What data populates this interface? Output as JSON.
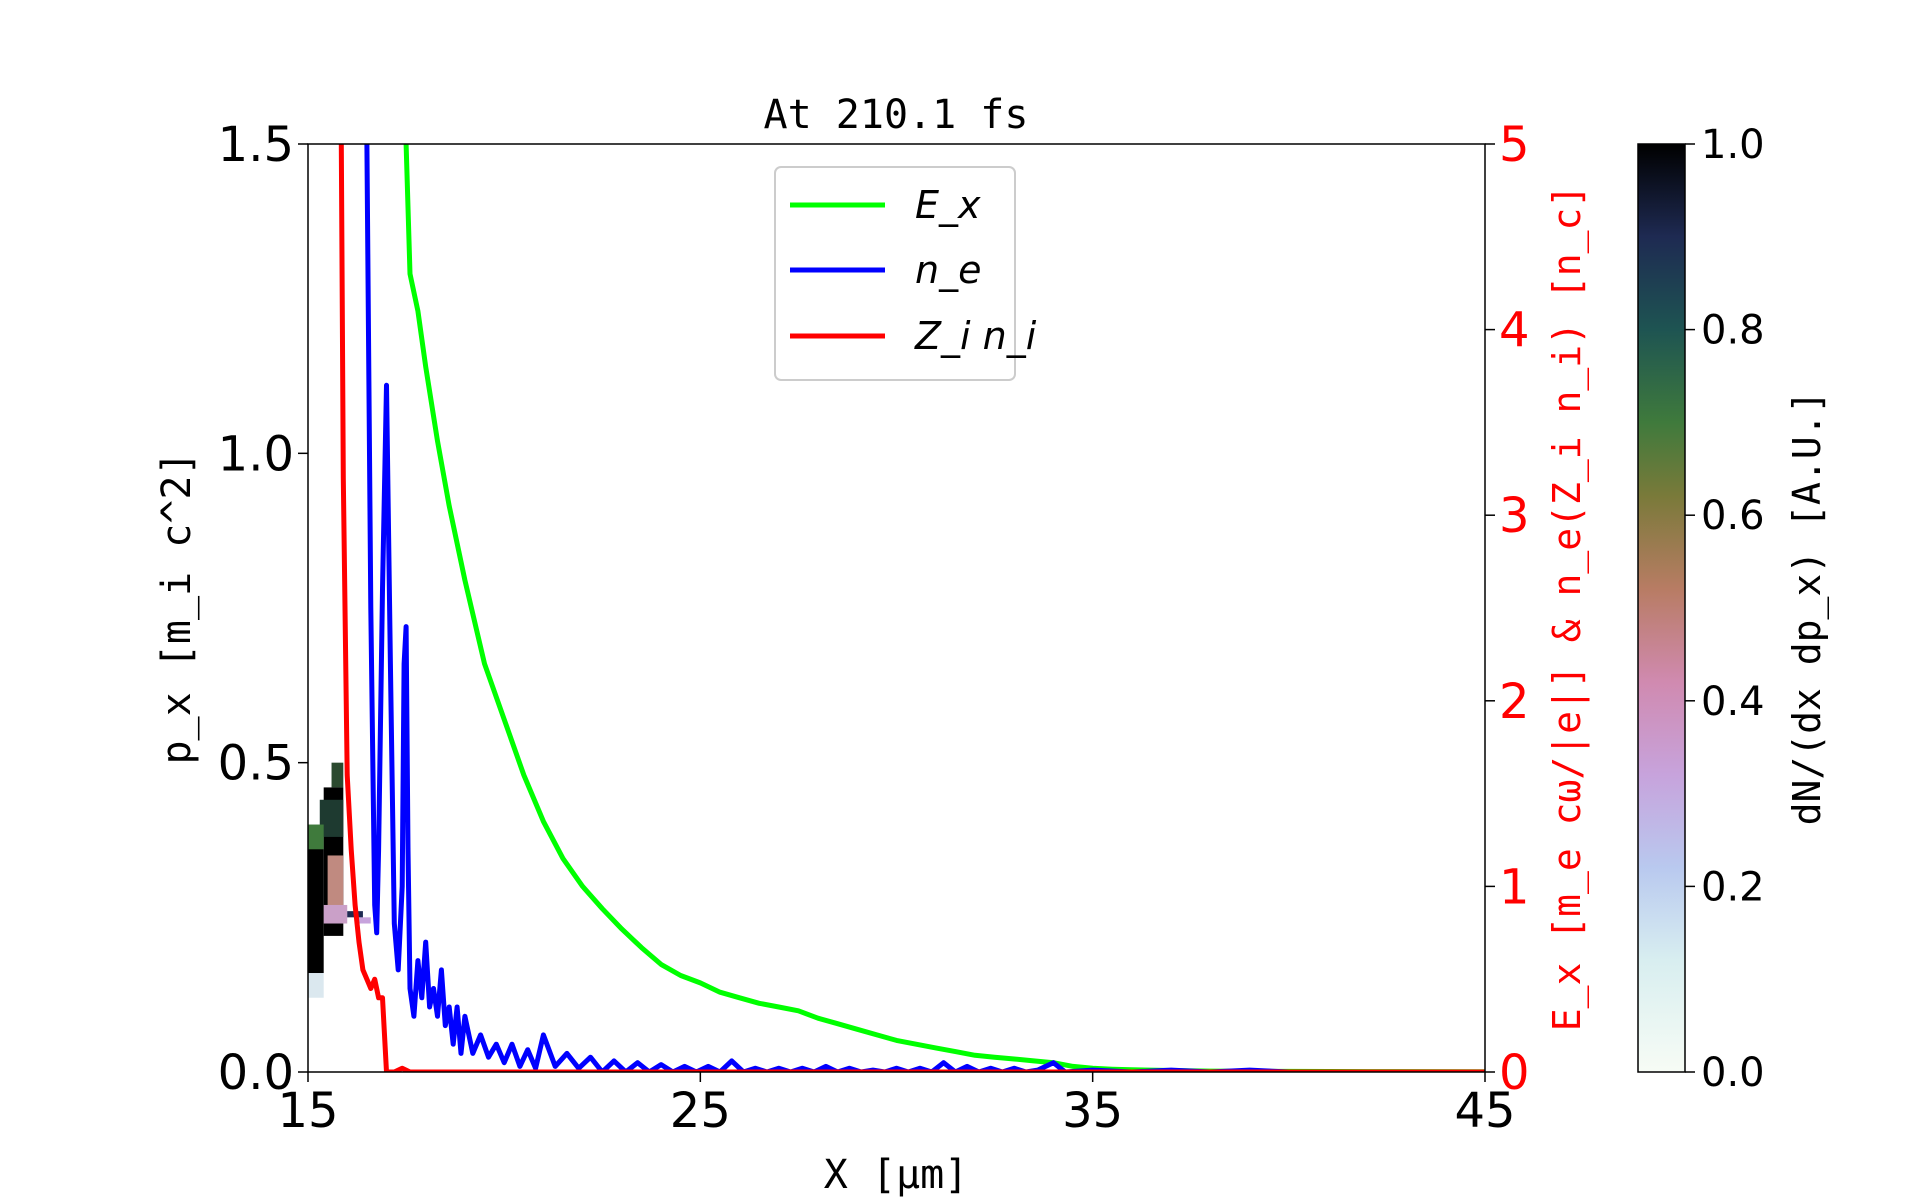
{
  "chart_data": {
    "type": "line",
    "title": "At 210.1 fs",
    "xlabel": "X [μm]",
    "ylabel_left": "p_x [m_i c^2]",
    "ylabel_right": "E_x [m_e cω/|e|] & n_e(Z_i n_i) [n_c]",
    "colorbar_label": "dN/(dx dp_x) [A.U.]",
    "xlim": [
      15,
      45
    ],
    "ylim_left": [
      0,
      1.5
    ],
    "ylim_right": [
      0,
      5
    ],
    "colorbar_range": [
      0,
      1
    ],
    "x_ticks": [
      "15",
      "25",
      "35",
      "45"
    ],
    "y_ticks_left": [
      "0.0",
      "0.5",
      "1.0",
      "1.5"
    ],
    "y_ticks_right": [
      "0",
      "1",
      "2",
      "3",
      "4",
      "5"
    ],
    "colorbar_ticks": [
      "0.0",
      "0.2",
      "0.4",
      "0.6",
      "0.8",
      "1.0"
    ],
    "grid": false,
    "legend_position": "top-center",
    "series": [
      {
        "name": "E_x",
        "color": "#00ff00",
        "axis": "right",
        "x": [
          17.5,
          17.6,
          17.8,
          18.0,
          18.3,
          18.6,
          19.0,
          19.5,
          20.0,
          20.5,
          21.0,
          21.5,
          22.0,
          22.5,
          23.0,
          23.5,
          24.0,
          24.5,
          25.0,
          25.5,
          26.0,
          26.5,
          27.0,
          27.5,
          28.0,
          28.5,
          29.0,
          29.5,
          30.0,
          30.5,
          31.0,
          31.5,
          32.0,
          32.5,
          33.0,
          33.5,
          34.0,
          34.5,
          35.0,
          35.5,
          36.0,
          37.0,
          38.0,
          40.0,
          42.0,
          45.0
        ],
        "y": [
          5.0,
          4.3,
          4.1,
          3.8,
          3.4,
          3.05,
          2.65,
          2.2,
          1.9,
          1.6,
          1.35,
          1.15,
          1.0,
          0.88,
          0.77,
          0.67,
          0.58,
          0.52,
          0.48,
          0.43,
          0.4,
          0.37,
          0.35,
          0.33,
          0.29,
          0.26,
          0.23,
          0.2,
          0.17,
          0.15,
          0.13,
          0.11,
          0.09,
          0.08,
          0.07,
          0.06,
          0.05,
          0.03,
          0.02,
          0.015,
          0.012,
          0.008,
          0.005,
          0.003,
          0.002,
          0.001
        ]
      },
      {
        "name": "n_e",
        "color": "#0000ff",
        "axis": "right",
        "x": [
          16.5,
          16.6,
          16.7,
          16.75,
          16.8,
          16.9,
          17.0,
          17.1,
          17.2,
          17.3,
          17.4,
          17.45,
          17.5,
          17.55,
          17.6,
          17.7,
          17.8,
          17.9,
          18.0,
          18.1,
          18.2,
          18.3,
          18.4,
          18.5,
          18.6,
          18.7,
          18.8,
          18.9,
          19.0,
          19.2,
          19.4,
          19.6,
          19.8,
          20.0,
          20.2,
          20.4,
          20.6,
          20.8,
          21.0,
          21.3,
          21.6,
          21.9,
          22.2,
          22.5,
          22.8,
          23.1,
          23.4,
          23.7,
          24.0,
          24.3,
          24.6,
          24.9,
          25.2,
          25.5,
          25.8,
          26.1,
          26.4,
          26.7,
          27.0,
          27.3,
          27.6,
          27.9,
          28.2,
          28.5,
          28.8,
          29.1,
          29.4,
          29.7,
          30.0,
          30.3,
          30.6,
          30.9,
          31.2,
          31.5,
          31.8,
          32.1,
          32.4,
          32.7,
          33.0,
          33.3,
          33.6,
          34.0,
          34.3,
          35.0,
          36.0,
          37.0,
          38.0,
          39.0,
          40.0,
          42.0,
          45.0
        ],
        "y": [
          5.0,
          2.5,
          0.9,
          0.75,
          1.2,
          2.6,
          3.7,
          2.2,
          0.8,
          0.55,
          1.0,
          2.2,
          2.4,
          1.2,
          0.45,
          0.3,
          0.6,
          0.4,
          0.7,
          0.35,
          0.45,
          0.3,
          0.55,
          0.25,
          0.35,
          0.15,
          0.35,
          0.1,
          0.3,
          0.1,
          0.2,
          0.08,
          0.15,
          0.05,
          0.15,
          0.03,
          0.12,
          0.02,
          0.2,
          0.03,
          0.1,
          0.02,
          0.08,
          0.0,
          0.06,
          0.0,
          0.05,
          0.0,
          0.04,
          0.0,
          0.03,
          0.0,
          0.03,
          0.0,
          0.06,
          0.0,
          0.02,
          0.0,
          0.02,
          0.0,
          0.02,
          0.0,
          0.03,
          0.0,
          0.02,
          0.0,
          0.01,
          0.0,
          0.02,
          0.0,
          0.02,
          0.0,
          0.05,
          0.0,
          0.03,
          0.0,
          0.02,
          0.0,
          0.02,
          0.0,
          0.01,
          0.05,
          0.0,
          0.01,
          0.0,
          0.01,
          0.0,
          0.01,
          0.0,
          0.0,
          0.0
        ]
      },
      {
        "name": "Z_i n_i",
        "color": "#ff0000",
        "axis": "right",
        "x": [
          15.85,
          15.9,
          16.0,
          16.1,
          16.2,
          16.3,
          16.4,
          16.5,
          16.6,
          16.7,
          16.8,
          16.9,
          17.0,
          17.2,
          17.4,
          17.6,
          18.0,
          19.0,
          20.0,
          25.0,
          30.0,
          35.0,
          40.0,
          45.0
        ],
        "y": [
          5.0,
          3.2,
          1.6,
          1.2,
          0.9,
          0.7,
          0.55,
          0.5,
          0.45,
          0.5,
          0.4,
          0.4,
          0.0,
          0.0,
          0.02,
          0.0,
          0.0,
          0.0,
          0.0,
          0.0,
          0.0,
          0.0,
          0.0,
          0.0
        ]
      }
    ],
    "phase_space": {
      "x_range": [
        15.0,
        16.0
      ],
      "px_range": [
        0.12,
        0.5
      ],
      "peak_value": 1.0
    }
  }
}
